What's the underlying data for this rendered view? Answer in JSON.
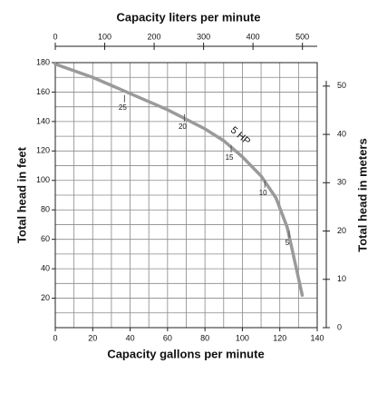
{
  "chart_data": {
    "type": "line",
    "title": "Capacity liters per minute",
    "xlabel": "Capacity gallons per minute",
    "ylabel": "Total head in feet",
    "y2label": "Total head in meters",
    "xlim": [
      0,
      140
    ],
    "xticks": [
      0,
      20,
      40,
      60,
      80,
      100,
      120,
      140
    ],
    "ylim": [
      0,
      180
    ],
    "yticks": [
      20,
      40,
      60,
      80,
      100,
      120,
      140,
      160,
      180
    ],
    "x2lim": [
      0,
      529.9
    ],
    "x2ticks": [
      0,
      100,
      200,
      300,
      400,
      500
    ],
    "y2lim": [
      0,
      54.86
    ],
    "y2ticks": [
      0,
      10,
      20,
      30,
      40,
      50
    ],
    "xgrid": [
      0,
      10,
      20,
      30,
      40,
      50,
      60,
      70,
      80,
      90,
      100,
      110,
      120,
      130,
      140
    ],
    "ygrid": [
      0,
      10,
      20,
      30,
      40,
      50,
      60,
      70,
      80,
      90,
      100,
      110,
      120,
      130,
      140,
      150,
      160,
      170,
      180
    ],
    "grid": true,
    "series": [
      {
        "name": "5 HP",
        "color": "#9a9a9a",
        "x": [
          0,
          20,
          40,
          60,
          80,
          90,
          100,
          110,
          118,
          124,
          128,
          132
        ],
        "values": [
          179,
          170,
          159,
          148,
          135,
          127,
          116,
          103,
          88,
          68,
          45,
          22
        ]
      }
    ],
    "markers": [
      {
        "label": "25",
        "x": 37,
        "y": 158
      },
      {
        "label": "20",
        "x": 69,
        "y": 145
      },
      {
        "label": "15",
        "x": 94,
        "y": 124
      },
      {
        "label": "10",
        "x": 112,
        "y": 100
      },
      {
        "label": "5",
        "x": 125,
        "y": 66
      }
    ]
  }
}
